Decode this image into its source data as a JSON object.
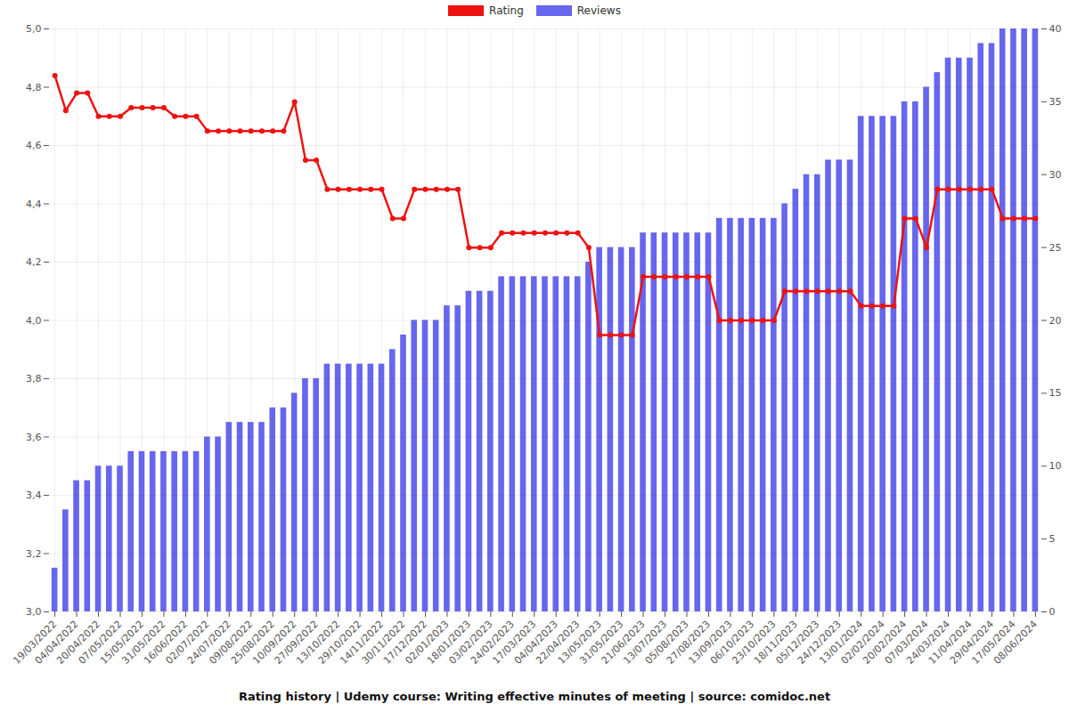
{
  "chart_data": {
    "type": "bar",
    "title": "Rating history | Udemy course: Writing effective minutes of meeting | source: comidoc.net",
    "categories": [
      "19/03/2022",
      null,
      "04/04/2022",
      null,
      "20/04/2022",
      null,
      "07/05/2022",
      null,
      "15/05/2022",
      null,
      "31/05/2022",
      null,
      "16/06/2022",
      null,
      "02/07/2022",
      null,
      "24/07/2022",
      null,
      "09/08/2022",
      null,
      "25/08/2022",
      null,
      "10/09/2022",
      null,
      "27/09/2022",
      null,
      "13/10/2022",
      null,
      "29/10/2022",
      null,
      "14/11/2022",
      null,
      "30/11/2022",
      null,
      "17/12/2022",
      null,
      "02/01/2023",
      null,
      "18/01/2023",
      null,
      "03/02/2023",
      null,
      "24/02/2023",
      null,
      "17/03/2023",
      null,
      "04/04/2023",
      null,
      "22/04/2023",
      null,
      "13/05/2023",
      null,
      "31/05/2023",
      null,
      "21/06/2023",
      null,
      "13/07/2023",
      null,
      "05/08/2023",
      null,
      "27/08/2023",
      null,
      "13/09/2023",
      null,
      "06/10/2023",
      null,
      "23/10/2023",
      null,
      "18/11/2023",
      null,
      "05/12/2023",
      null,
      "24/12/2023",
      null,
      "13/01/2024",
      null,
      "02/02/2024",
      null,
      "20/02/2024",
      null,
      "07/03/2024",
      null,
      "24/03/2024",
      null,
      "11/04/2024",
      null,
      "29/04/2024",
      null,
      "17/05/2024",
      null,
      "08/06/2024"
    ],
    "series": [
      {
        "name": "Rating",
        "type": "line",
        "color": "#ee1111",
        "marker": "o",
        "axis": "y",
        "values": [
          4.84,
          4.72,
          4.78,
          4.78,
          4.7,
          4.7,
          4.7,
          4.73,
          4.73,
          4.73,
          4.73,
          4.7,
          4.7,
          4.7,
          4.65,
          4.65,
          4.65,
          4.65,
          4.65,
          4.65,
          4.65,
          4.65,
          4.75,
          4.55,
          4.55,
          4.45,
          4.45,
          4.45,
          4.45,
          4.45,
          4.45,
          4.35,
          4.35,
          4.45,
          4.45,
          4.45,
          4.45,
          4.45,
          4.25,
          4.25,
          4.25,
          4.3,
          4.3,
          4.3,
          4.3,
          4.3,
          4.3,
          4.3,
          4.3,
          4.25,
          3.95,
          3.95,
          3.95,
          3.95,
          4.15,
          4.15,
          4.15,
          4.15,
          4.15,
          4.15,
          4.15,
          4.0,
          4.0,
          4.0,
          4.0,
          4.0,
          4.0,
          4.1,
          4.1,
          4.1,
          4.1,
          4.1,
          4.1,
          4.1,
          4.05,
          4.05,
          4.05,
          4.05,
          4.35,
          4.35,
          4.25,
          4.45,
          4.45,
          4.45,
          4.45,
          4.45,
          4.45,
          4.35,
          4.35,
          4.35,
          4.35
        ]
      },
      {
        "name": "Reviews",
        "type": "bar",
        "color": "#6666ee",
        "axis": "y2",
        "values": [
          3,
          7,
          9,
          9,
          10,
          10,
          10,
          11,
          11,
          11,
          11,
          11,
          11,
          11,
          12,
          12,
          13,
          13,
          13,
          13,
          14,
          14,
          15,
          16,
          16,
          17,
          17,
          17,
          17,
          17,
          17,
          18,
          19,
          20,
          20,
          20,
          21,
          21,
          22,
          22,
          22,
          23,
          23,
          23,
          23,
          23,
          23,
          23,
          23,
          24,
          25,
          25,
          25,
          25,
          26,
          26,
          26,
          26,
          26,
          26,
          26,
          27,
          27,
          27,
          27,
          27,
          27,
          28,
          29,
          30,
          30,
          31,
          31,
          31,
          34,
          34,
          34,
          34,
          35,
          35,
          36,
          37,
          38,
          38,
          38,
          39,
          39,
          40,
          40,
          40,
          40
        ]
      }
    ],
    "ylim": [
      3,
      5
    ],
    "yticks": [
      {
        "value": 3,
        "label": "3,0"
      },
      {
        "value": 3.2,
        "label": "3,2"
      },
      {
        "value": 3.4,
        "label": "3,4"
      },
      {
        "value": 3.6,
        "label": "3,6"
      },
      {
        "value": 3.8,
        "label": "3,8"
      },
      {
        "value": 4,
        "label": "4,0"
      },
      {
        "value": 4.2,
        "label": "4,2"
      },
      {
        "value": 4.4,
        "label": "4,4"
      },
      {
        "value": 4.6,
        "label": "4,6"
      },
      {
        "value": 4.8,
        "label": "4,8"
      },
      {
        "value": 5,
        "label": "5,0"
      }
    ],
    "y2lim": [
      0,
      40
    ],
    "y2ticks": [
      0,
      5,
      10,
      15,
      20,
      25,
      30,
      35,
      40
    ],
    "grid": true,
    "legend": "top"
  }
}
